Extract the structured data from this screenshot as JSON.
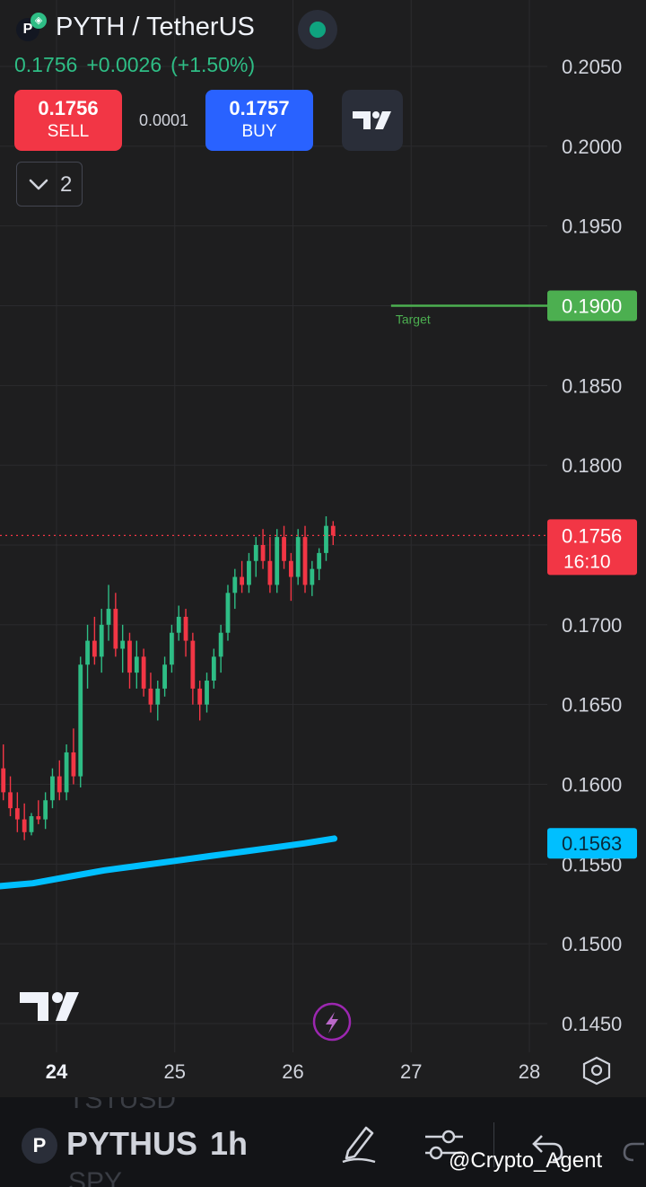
{
  "header": {
    "symbol_title": "PYTH / TetherUS",
    "logo_glyph": "P",
    "badge_glyph": "◈",
    "last_price": "0.1756",
    "change": "+0.0026",
    "change_pct": "(+1.50%)",
    "sell_price": "0.1756",
    "sell_label": "SELL",
    "buy_price": "0.1757",
    "buy_label": "BUY",
    "spread": "0.0001",
    "collapse_count": "2",
    "up_color": "#2ebd85",
    "down_color": "#f23645"
  },
  "chart_data": {
    "type": "candlestick",
    "interval": "1h",
    "ylim": [
      0.1425,
      0.2075
    ],
    "xlim": [
      23.55,
      28.35
    ],
    "y_ticks": [
      "0.2050",
      "0.2000",
      "0.1950",
      "0.1850",
      "0.1800",
      "0.1700",
      "0.1650",
      "0.1600",
      "0.1550",
      "0.1500",
      "0.1450"
    ],
    "x_ticks": [
      "24",
      "25",
      "26",
      "27",
      "28"
    ],
    "active_x_tick": "24",
    "grid": true,
    "target": {
      "label": "Target",
      "value": "0.1900",
      "color": "#4caf50",
      "x_start": 26.83
    },
    "current_price": {
      "value": "0.1756",
      "countdown": "16:10",
      "color": "#f23645"
    },
    "moving_average": {
      "value": "0.1563",
      "color": "#00bfff",
      "points": [
        [
          23.5,
          0.1536
        ],
        [
          23.8,
          0.1538
        ],
        [
          24.1,
          0.1542
        ],
        [
          24.4,
          0.1546
        ],
        [
          24.7,
          0.1549
        ],
        [
          25.0,
          0.1552
        ],
        [
          25.3,
          0.1555
        ],
        [
          25.6,
          0.1558
        ],
        [
          25.9,
          0.1561
        ],
        [
          26.1,
          0.1563
        ],
        [
          26.35,
          0.1566
        ]
      ]
    },
    "candles_ohlc": [
      [
        0.161,
        0.1625,
        0.159,
        0.1595
      ],
      [
        0.1595,
        0.1605,
        0.158,
        0.1585
      ],
      [
        0.1585,
        0.1595,
        0.157,
        0.1578
      ],
      [
        0.1578,
        0.1588,
        0.1565,
        0.157
      ],
      [
        0.157,
        0.1582,
        0.1568,
        0.158
      ],
      [
        0.158,
        0.159,
        0.1575,
        0.1578
      ],
      [
        0.1578,
        0.1595,
        0.1572,
        0.159
      ],
      [
        0.159,
        0.161,
        0.1585,
        0.1605
      ],
      [
        0.1605,
        0.1615,
        0.159,
        0.1595
      ],
      [
        0.1595,
        0.1625,
        0.159,
        0.162
      ],
      [
        0.162,
        0.1635,
        0.16,
        0.1605
      ],
      [
        0.1605,
        0.168,
        0.1598,
        0.1675
      ],
      [
        0.1675,
        0.17,
        0.166,
        0.169
      ],
      [
        0.169,
        0.1705,
        0.1675,
        0.168
      ],
      [
        0.168,
        0.171,
        0.167,
        0.17
      ],
      [
        0.17,
        0.1725,
        0.169,
        0.171
      ],
      [
        0.171,
        0.172,
        0.168,
        0.1685
      ],
      [
        0.1685,
        0.17,
        0.167,
        0.169
      ],
      [
        0.169,
        0.1695,
        0.166,
        0.167
      ],
      [
        0.167,
        0.169,
        0.166,
        0.168
      ],
      [
        0.168,
        0.1685,
        0.1655,
        0.166
      ],
      [
        0.166,
        0.167,
        0.1645,
        0.165
      ],
      [
        0.165,
        0.1665,
        0.164,
        0.166
      ],
      [
        0.166,
        0.168,
        0.1655,
        0.1675
      ],
      [
        0.1675,
        0.17,
        0.167,
        0.1695
      ],
      [
        0.1695,
        0.1712,
        0.169,
        0.1705
      ],
      [
        0.1705,
        0.171,
        0.168,
        0.169
      ],
      [
        0.169,
        0.1695,
        0.165,
        0.166
      ],
      [
        0.166,
        0.1665,
        0.164,
        0.165
      ],
      [
        0.165,
        0.167,
        0.1645,
        0.1665
      ],
      [
        0.1665,
        0.1685,
        0.166,
        0.168
      ],
      [
        0.168,
        0.17,
        0.167,
        0.1695
      ],
      [
        0.1695,
        0.1725,
        0.169,
        0.172
      ],
      [
        0.172,
        0.1735,
        0.171,
        0.173
      ],
      [
        0.173,
        0.174,
        0.172,
        0.1725
      ],
      [
        0.1725,
        0.1745,
        0.172,
        0.174
      ],
      [
        0.174,
        0.1755,
        0.173,
        0.175
      ],
      [
        0.175,
        0.176,
        0.1735,
        0.174
      ],
      [
        0.174,
        0.1755,
        0.172,
        0.1725
      ],
      [
        0.1725,
        0.176,
        0.172,
        0.1755
      ],
      [
        0.1755,
        0.1762,
        0.1735,
        0.174
      ],
      [
        0.174,
        0.1745,
        0.1715,
        0.173
      ],
      [
        0.173,
        0.176,
        0.1725,
        0.1755
      ],
      [
        0.1755,
        0.1762,
        0.172,
        0.1725
      ],
      [
        0.1725,
        0.174,
        0.1718,
        0.1735
      ],
      [
        0.1735,
        0.1748,
        0.1728,
        0.1745
      ],
      [
        0.1745,
        0.1768,
        0.174,
        0.1762
      ],
      [
        0.1762,
        0.1765,
        0.175,
        0.1756
      ]
    ]
  },
  "bottom_bar": {
    "ghost_top": "TSTUSD",
    "ghost_bottom": "SPY",
    "logo_glyph": "P",
    "symbol": "PYTHUS",
    "interval": "1h",
    "watermark": "@Crypto_Agent",
    "icons": [
      "pencil-icon",
      "settings-sliders-icon",
      "undo-icon",
      "redo-icon"
    ]
  }
}
